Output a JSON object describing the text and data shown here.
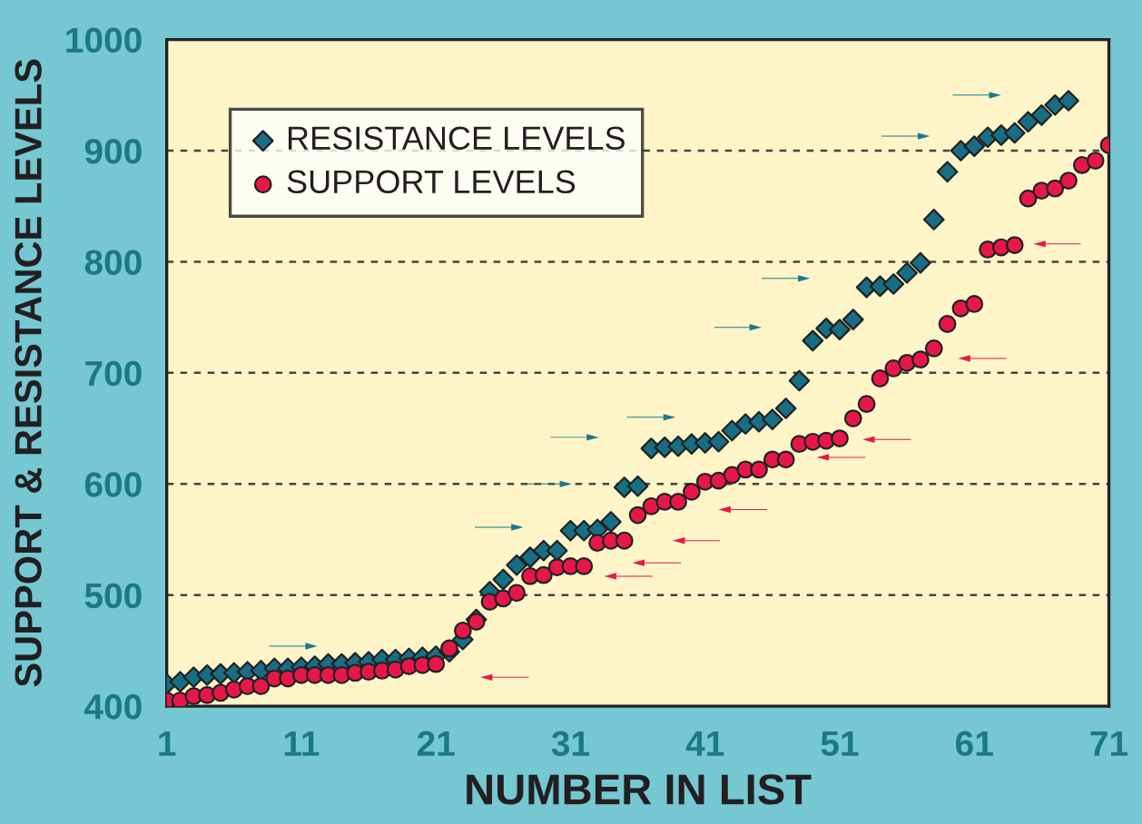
{
  "chart_data": {
    "type": "scatter",
    "xlabel": "NUMBER IN LIST",
    "ylabel": "SUPPORT & RESISTANCE LEVELS",
    "x": [
      1,
      2,
      3,
      4,
      5,
      6,
      7,
      8,
      9,
      10,
      11,
      12,
      13,
      14,
      15,
      16,
      17,
      18,
      19,
      20,
      21,
      22,
      23,
      24,
      25,
      26,
      27,
      28,
      29,
      30,
      31,
      32,
      33,
      34,
      35,
      36,
      37,
      38,
      39,
      40,
      41,
      42,
      43,
      44,
      45,
      46,
      47,
      48,
      49,
      50,
      51,
      52,
      53,
      54,
      55,
      56,
      57,
      58,
      59,
      60,
      61,
      62,
      63,
      64,
      65,
      66,
      67,
      68,
      69,
      70,
      71
    ],
    "series": [
      {
        "name": "RESISTANCE LEVELS",
        "color": "#176e85",
        "marker": "diamond",
        "values": [
          420,
          422,
          426,
          428,
          429,
          430,
          431,
          432,
          434,
          434,
          435,
          436,
          438,
          438,
          439,
          440,
          442,
          442,
          443,
          444,
          445,
          449,
          460,
          478,
          503,
          514,
          527,
          534,
          540,
          540,
          558,
          558,
          559,
          566,
          597,
          598,
          632,
          633,
          634,
          636,
          637,
          638,
          648,
          654,
          656,
          658,
          668,
          693,
          729,
          740,
          739,
          748,
          777,
          778,
          780,
          790,
          799,
          838,
          881,
          900,
          904,
          912,
          914,
          916,
          926,
          932,
          941,
          945,
          null,
          null,
          null
        ]
      },
      {
        "name": "SUPPORT LEVELS",
        "color": "#e8174a",
        "marker": "circle",
        "values": [
          405,
          405,
          409,
          410,
          412,
          415,
          418,
          418,
          425,
          425,
          428,
          428,
          428,
          428,
          430,
          431,
          432,
          433,
          436,
          437,
          438,
          452,
          468,
          476,
          494,
          497,
          502,
          517,
          518,
          525,
          526,
          526,
          547,
          549,
          549,
          572,
          580,
          584,
          584,
          593,
          602,
          603,
          608,
          613,
          613,
          622,
          622,
          636,
          638,
          639,
          641,
          659,
          672,
          695,
          704,
          709,
          712,
          722,
          744,
          758,
          762,
          811,
          813,
          815,
          857,
          864,
          866,
          873,
          887,
          891,
          905
        ]
      }
    ],
    "xlim": [
      1,
      71
    ],
    "xticks": [
      1,
      11,
      21,
      31,
      41,
      51,
      61,
      71
    ],
    "ylim": [
      400,
      1000
    ],
    "yticks": [
      400,
      500,
      600,
      700,
      800,
      900,
      1000
    ],
    "grid": "y",
    "legend": "top left"
  }
}
